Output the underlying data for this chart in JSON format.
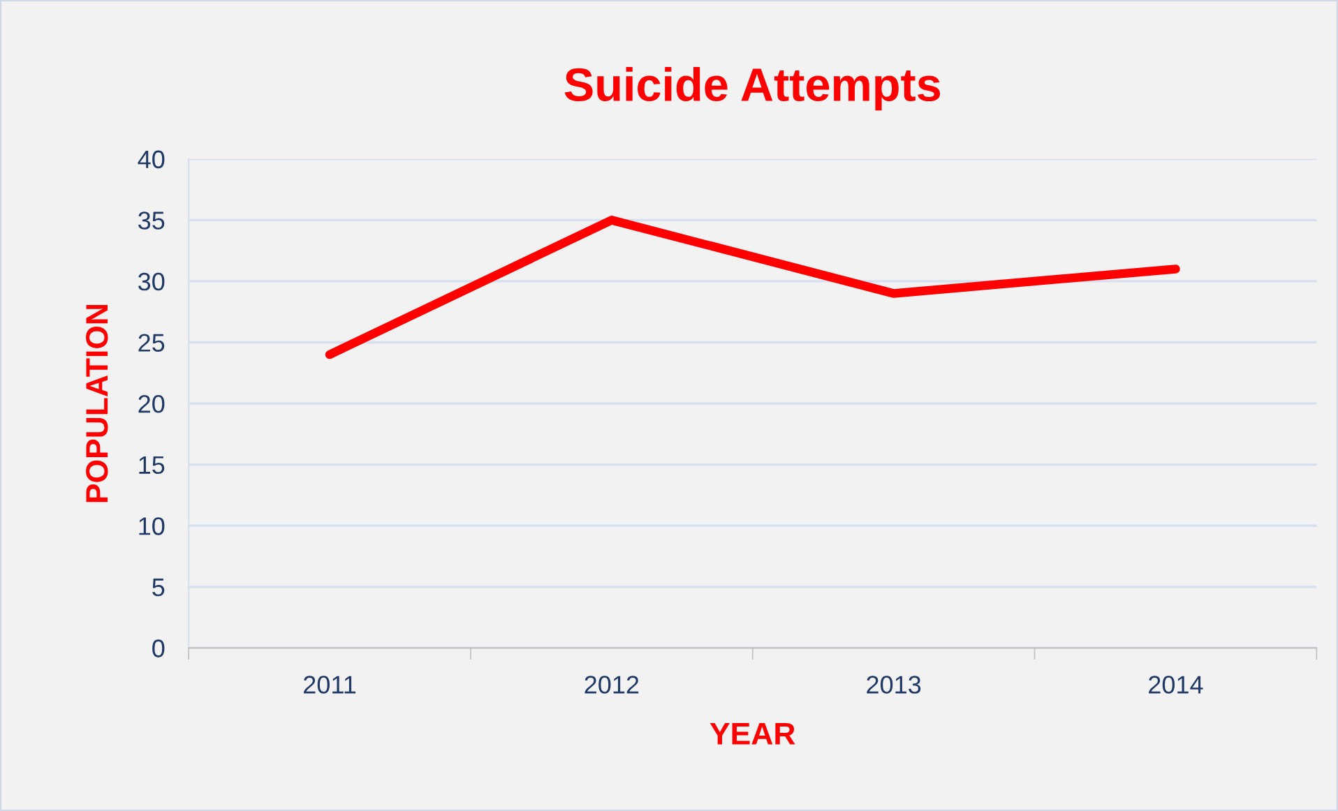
{
  "chart_data": {
    "type": "line",
    "title": "Suicide Attempts",
    "xlabel": "YEAR",
    "ylabel": "POPULATION",
    "categories": [
      "2011",
      "2012",
      "2013",
      "2014"
    ],
    "series": [
      {
        "color": "#ff0000",
        "values": [
          24,
          35,
          29,
          31
        ]
      }
    ],
    "ylim": [
      0,
      40
    ],
    "yticks": [
      0,
      5,
      10,
      15,
      20,
      25,
      30,
      35,
      40
    ],
    "grid": "y",
    "marker": "none",
    "line_style": "solid"
  }
}
